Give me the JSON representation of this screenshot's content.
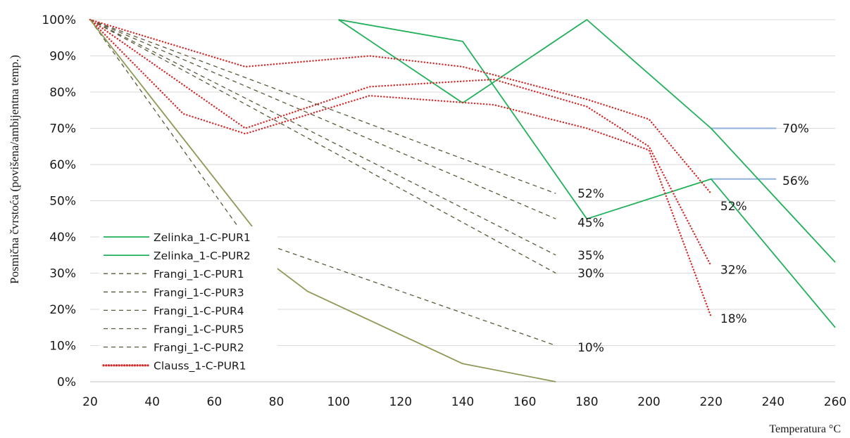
{
  "chart_data": {
    "type": "line",
    "xlabel": "Temperatura °C",
    "ylabel": "Posmična čvrstoća (povišena/ambijentna temp.)",
    "xlim": [
      20,
      260
    ],
    "ylim": [
      0,
      100
    ],
    "x_ticks": [
      "20",
      "40",
      "60",
      "80",
      "100",
      "120",
      "140",
      "160",
      "180",
      "200",
      "220",
      "240",
      "260"
    ],
    "y_ticks": [
      "0%",
      "10%",
      "20%",
      "30%",
      "40%",
      "50%",
      "60%",
      "70%",
      "80%",
      "90%",
      "100%"
    ],
    "grid": "horizontal",
    "legend_position": "bottom-left",
    "colors": {
      "zelinka": "#22b05a",
      "frangi": "#5a5a3c",
      "clauss": "#d42a2a",
      "extra": "#8c9a55",
      "leader": "#8fb0d8"
    },
    "series": [
      {
        "name": "Zelinka_1-C-PUR1",
        "style": "solid-green",
        "points": [
          [
            100,
            100
          ],
          [
            140,
            94
          ],
          [
            180,
            45
          ],
          [
            220,
            56
          ],
          [
            260,
            15
          ]
        ]
      },
      {
        "name": "Zelinka_1-C-PUR2",
        "style": "solid-green",
        "points": [
          [
            100,
            100
          ],
          [
            140,
            77
          ],
          [
            180,
            100
          ],
          [
            220,
            70
          ],
          [
            260,
            33
          ]
        ]
      },
      {
        "name": "Frangi_1-C-PUR1",
        "style": "dashed-olive",
        "points": [
          [
            20,
            100
          ],
          [
            170,
            52
          ]
        ]
      },
      {
        "name": "Frangi_1-C-PUR3",
        "style": "dashed-olive",
        "points": [
          [
            20,
            100
          ],
          [
            170,
            45
          ]
        ]
      },
      {
        "name": "Frangi_1-C-PUR4",
        "style": "dashed-olive",
        "points": [
          [
            20,
            100
          ],
          [
            170,
            35
          ]
        ]
      },
      {
        "name": "Frangi_1-C-PUR5",
        "style": "dashed-olive",
        "points": [
          [
            20,
            100
          ],
          [
            170,
            30
          ]
        ]
      },
      {
        "name": "Frangi_1-C-PUR2",
        "style": "dashed-olive",
        "points": [
          [
            20,
            100
          ],
          [
            70,
            40
          ],
          [
            170,
            10
          ]
        ]
      },
      {
        "name": "Clauss_1-C-PUR1",
        "style": "dotted-red",
        "points": [
          [
            20,
            100
          ],
          [
            70,
            87
          ],
          [
            110,
            90
          ],
          [
            140,
            87
          ],
          [
            180,
            78
          ],
          [
            200,
            72.5
          ],
          [
            220,
            52
          ]
        ]
      },
      {
        "style": "dotted-red",
        "points": [
          [
            20,
            100
          ],
          [
            70,
            70
          ],
          [
            110,
            81.5
          ],
          [
            150,
            83.5
          ],
          [
            180,
            76
          ],
          [
            200,
            65
          ],
          [
            220,
            32
          ]
        ]
      },
      {
        "style": "dotted-red",
        "points": [
          [
            20,
            100
          ],
          [
            50,
            74
          ],
          [
            70,
            68.5
          ],
          [
            110,
            79
          ],
          [
            150,
            76.5
          ],
          [
            180,
            70
          ],
          [
            200,
            64
          ],
          [
            220,
            18
          ]
        ]
      },
      {
        "style": "solid-olive",
        "points": [
          [
            20,
            100
          ],
          [
            73,
            42
          ]
        ]
      },
      {
        "style": "solid-olive",
        "points": [
          [
            73,
            36
          ],
          [
            90,
            25
          ],
          [
            140,
            5
          ],
          [
            170,
            0
          ]
        ]
      }
    ],
    "annotations": [
      {
        "text": "52%",
        "x": 177,
        "y": 52,
        "color": "frangi"
      },
      {
        "text": "45%",
        "x": 177,
        "y": 44,
        "color": "frangi"
      },
      {
        "text": "35%",
        "x": 177,
        "y": 35,
        "color": "frangi"
      },
      {
        "text": "30%",
        "x": 177,
        "y": 30,
        "color": "frangi"
      },
      {
        "text": "10%",
        "x": 177,
        "y": 9.5,
        "color": "frangi"
      },
      {
        "text": "52%",
        "x": 223,
        "y": 48.5,
        "color": "clauss"
      },
      {
        "text": "32%",
        "x": 223,
        "y": 31,
        "color": "clauss"
      },
      {
        "text": "18%",
        "x": 223,
        "y": 17.5,
        "color": "clauss"
      },
      {
        "text": "70%",
        "x": 243,
        "y": 70,
        "color": "zelinka"
      },
      {
        "text": "56%",
        "x": 243,
        "y": 55.5,
        "color": "zelinka"
      }
    ],
    "leaders": [
      {
        "x1": 220,
        "y1": 70,
        "x2": 241,
        "y2": 70
      },
      {
        "x1": 220,
        "y1": 56,
        "x2": 241,
        "y2": 56
      }
    ]
  }
}
